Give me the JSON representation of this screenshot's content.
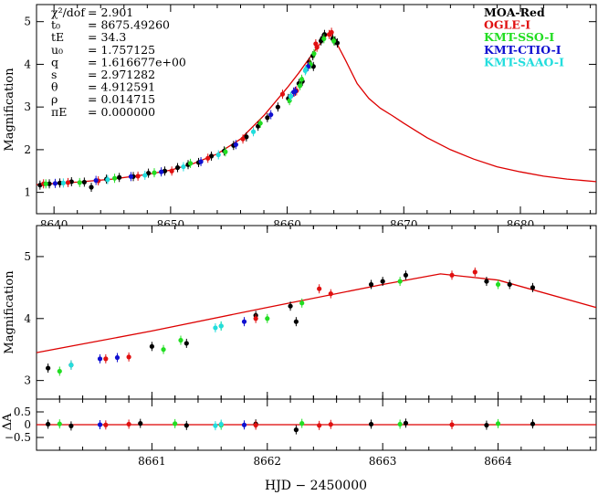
{
  "chart_data": {
    "type": "scatter",
    "title": "",
    "xlabel": "HJD − 2450000",
    "legend_position": "top-right",
    "legend": [
      {
        "name": "MOA-Red",
        "color": "#000000"
      },
      {
        "name": "OGLE-I",
        "color": "#e01010"
      },
      {
        "name": "KMT-SSO-I",
        "color": "#22dd22"
      },
      {
        "name": "KMT-CTIO-I",
        "color": "#1010d0"
      },
      {
        "name": "KMT-SAAO-I",
        "color": "#22dddd"
      }
    ],
    "model_color": "#dd0000",
    "parameters": [
      {
        "symbol": "χ²/dof",
        "value": "= 2.901"
      },
      {
        "symbol": "t₀",
        "value": "= 8675.49260"
      },
      {
        "symbol": "tE",
        "value": "= 34.3"
      },
      {
        "symbol": "u₀",
        "value": "= 1.757125"
      },
      {
        "symbol": "q",
        "value": "= 1.616677e+00"
      },
      {
        "symbol": "s",
        "value": "= 2.971282"
      },
      {
        "symbol": "θ",
        "value": "= 4.912591"
      },
      {
        "symbol": "ρ",
        "value": "= 0.014715"
      },
      {
        "symbol": "πE",
        "value": "= 0.000000"
      }
    ],
    "panels": [
      {
        "name": "full light curve",
        "ylabel": "Magnification",
        "xlim": [
          8638.5,
          8686.5
        ],
        "ylim": [
          0.5,
          5.4
        ],
        "xticks": [
          8640,
          8650,
          8660,
          8670,
          8680
        ],
        "xtick_labels": [
          "8640",
          "8650",
          "8660",
          "8670",
          "8680"
        ],
        "yticks": [
          1,
          2,
          3,
          4,
          5
        ],
        "ytick_labels": [
          "1",
          "2",
          "3",
          "4",
          "5"
        ]
      },
      {
        "name": "peak zoom",
        "ylabel": "Magnification",
        "xlim": [
          8660.0,
          8664.85
        ],
        "ylim": [
          2.7,
          5.5
        ],
        "yticks": [
          3,
          4,
          5
        ],
        "ytick_labels": [
          "3",
          "4",
          "5"
        ]
      },
      {
        "name": "residuals",
        "ylabel": "ΔA",
        "xlim": [
          8660.0,
          8664.85
        ],
        "ylim": [
          -1.0,
          1.0
        ],
        "xticks": [
          8661,
          8662,
          8663,
          8664
        ],
        "xtick_labels": [
          "8661",
          "8662",
          "8663",
          "8664"
        ],
        "yticks": [
          -0.5,
          0,
          0.5
        ],
        "ytick_labels": [
          "−0.5",
          "0",
          "0.5"
        ]
      }
    ],
    "model_curve": [
      [
        8638.5,
        1.18
      ],
      [
        8642,
        1.24
      ],
      [
        8645,
        1.31
      ],
      [
        8648,
        1.42
      ],
      [
        8650,
        1.52
      ],
      [
        8652,
        1.68
      ],
      [
        8654,
        1.9
      ],
      [
        8656,
        2.25
      ],
      [
        8658,
        2.8
      ],
      [
        8660,
        3.45
      ],
      [
        8661,
        3.8
      ],
      [
        8662,
        4.18
      ],
      [
        8663,
        4.55
      ],
      [
        8663.5,
        4.72
      ],
      [
        8664,
        4.62
      ],
      [
        8665,
        4.1
      ],
      [
        8666,
        3.55
      ],
      [
        8667,
        3.2
      ],
      [
        8668,
        2.97
      ],
      [
        8669,
        2.8
      ],
      [
        8670,
        2.62
      ],
      [
        8671,
        2.45
      ],
      [
        8672,
        2.28
      ],
      [
        8674,
        2.0
      ],
      [
        8676,
        1.78
      ],
      [
        8678,
        1.6
      ],
      [
        8680,
        1.48
      ],
      [
        8682,
        1.38
      ],
      [
        8684,
        1.31
      ],
      [
        8686.5,
        1.25
      ]
    ],
    "series": [
      {
        "name": "MOA-Red",
        "points": [
          [
            8638.8,
            1.17
          ],
          [
            8639.6,
            1.2
          ],
          [
            8640.5,
            1.22
          ],
          [
            8641.5,
            1.25
          ],
          [
            8642.6,
            1.24
          ],
          [
            8643.2,
            1.12
          ],
          [
            8644.5,
            1.31
          ],
          [
            8645.6,
            1.35
          ],
          [
            8646.8,
            1.37
          ],
          [
            8648.1,
            1.45
          ],
          [
            8649.5,
            1.5
          ],
          [
            8650.6,
            1.58
          ],
          [
            8651.5,
            1.65
          ],
          [
            8652.4,
            1.7
          ],
          [
            8653.5,
            1.85
          ],
          [
            8654.6,
            1.97
          ],
          [
            8655.4,
            2.1
          ],
          [
            8656.5,
            2.3
          ],
          [
            8657.5,
            2.55
          ],
          [
            8658.3,
            2.75
          ],
          [
            8659.2,
            3.0
          ],
          [
            8660.1,
            3.2
          ],
          [
            8660.3,
            3.25
          ],
          [
            8661.0,
            3.55
          ],
          [
            8661.3,
            3.6
          ],
          [
            8661.9,
            4.05
          ],
          [
            8662.2,
            4.2
          ],
          [
            8662.25,
            3.95
          ],
          [
            8662.9,
            4.55
          ],
          [
            8663.0,
            4.6
          ],
          [
            8663.2,
            4.7
          ],
          [
            8663.9,
            4.6
          ],
          [
            8664.1,
            4.55
          ],
          [
            8664.3,
            4.5
          ]
        ]
      },
      {
        "name": "OGLE-I",
        "points": [
          [
            8639.1,
            1.2
          ],
          [
            8641.2,
            1.23
          ],
          [
            8643.8,
            1.27
          ],
          [
            8647.2,
            1.38
          ],
          [
            8650.1,
            1.5
          ],
          [
            8653.2,
            1.8
          ],
          [
            8656.2,
            2.25
          ],
          [
            8659.6,
            3.3
          ],
          [
            8660.6,
            3.35
          ],
          [
            8660.8,
            3.38
          ],
          [
            8661.9,
            4.0
          ],
          [
            8662.45,
            4.48
          ],
          [
            8662.55,
            4.4
          ],
          [
            8663.6,
            4.7
          ],
          [
            8663.8,
            4.75
          ]
        ]
      },
      {
        "name": "KMT-SSO-I",
        "points": [
          [
            8639.3,
            1.2
          ],
          [
            8642.2,
            1.23
          ],
          [
            8645.2,
            1.33
          ],
          [
            8648.6,
            1.46
          ],
          [
            8651.7,
            1.68
          ],
          [
            8654.7,
            1.95
          ],
          [
            8657.7,
            2.62
          ],
          [
            8660.2,
            3.15
          ],
          [
            8661.1,
            3.5
          ],
          [
            8661.25,
            3.65
          ],
          [
            8661.6,
            3.88
          ],
          [
            8662.0,
            4.0
          ],
          [
            8662.3,
            4.25
          ],
          [
            8663.15,
            4.6
          ],
          [
            8664.0,
            4.55
          ]
        ]
      },
      {
        "name": "KMT-CTIO-I",
        "points": [
          [
            8640.1,
            1.21
          ],
          [
            8643.6,
            1.28
          ],
          [
            8646.6,
            1.37
          ],
          [
            8649.2,
            1.48
          ],
          [
            8652.6,
            1.72
          ],
          [
            8655.6,
            2.12
          ],
          [
            8658.6,
            2.82
          ],
          [
            8660.55,
            3.35
          ],
          [
            8660.7,
            3.37
          ],
          [
            8661.8,
            3.95
          ]
        ]
      },
      {
        "name": "KMT-SAAO-I",
        "points": [
          [
            8640.8,
            1.22
          ],
          [
            8644.6,
            1.3
          ],
          [
            8647.8,
            1.4
          ],
          [
            8651.1,
            1.6
          ],
          [
            8654.1,
            1.88
          ],
          [
            8657.1,
            2.42
          ],
          [
            8660.3,
            3.25
          ],
          [
            8661.55,
            3.85
          ],
          [
            8661.6,
            3.88
          ]
        ]
      }
    ],
    "residuals": [
      {
        "name": "MOA-Red",
        "points": [
          [
            8660.1,
            0.02
          ],
          [
            8660.3,
            -0.05
          ],
          [
            8660.9,
            0.05
          ],
          [
            8661.3,
            -0.03
          ],
          [
            8661.9,
            0.03
          ],
          [
            8662.25,
            -0.2
          ],
          [
            8662.9,
            0.02
          ],
          [
            8663.2,
            0.06
          ],
          [
            8663.9,
            -0.02
          ],
          [
            8664.3,
            0.03
          ]
        ]
      },
      {
        "name": "OGLE-I",
        "points": [
          [
            8660.6,
            -0.01
          ],
          [
            8660.8,
            0.02
          ],
          [
            8661.9,
            -0.02
          ],
          [
            8662.45,
            -0.03
          ],
          [
            8662.55,
            0.01
          ],
          [
            8663.6,
            0.0
          ]
        ]
      },
      {
        "name": "KMT-SSO-I",
        "points": [
          [
            8660.2,
            0.03
          ],
          [
            8661.2,
            0.04
          ],
          [
            8661.6,
            -0.02
          ],
          [
            8662.3,
            0.05
          ],
          [
            8663.15,
            0.02
          ],
          [
            8664.0,
            0.04
          ]
        ]
      },
      {
        "name": "KMT-CTIO-I",
        "points": [
          [
            8660.55,
            0.0
          ],
          [
            8661.8,
            -0.01
          ]
        ]
      },
      {
        "name": "KMT-SAAO-I",
        "points": [
          [
            8661.55,
            -0.04
          ],
          [
            8661.6,
            0.02
          ]
        ]
      }
    ]
  }
}
